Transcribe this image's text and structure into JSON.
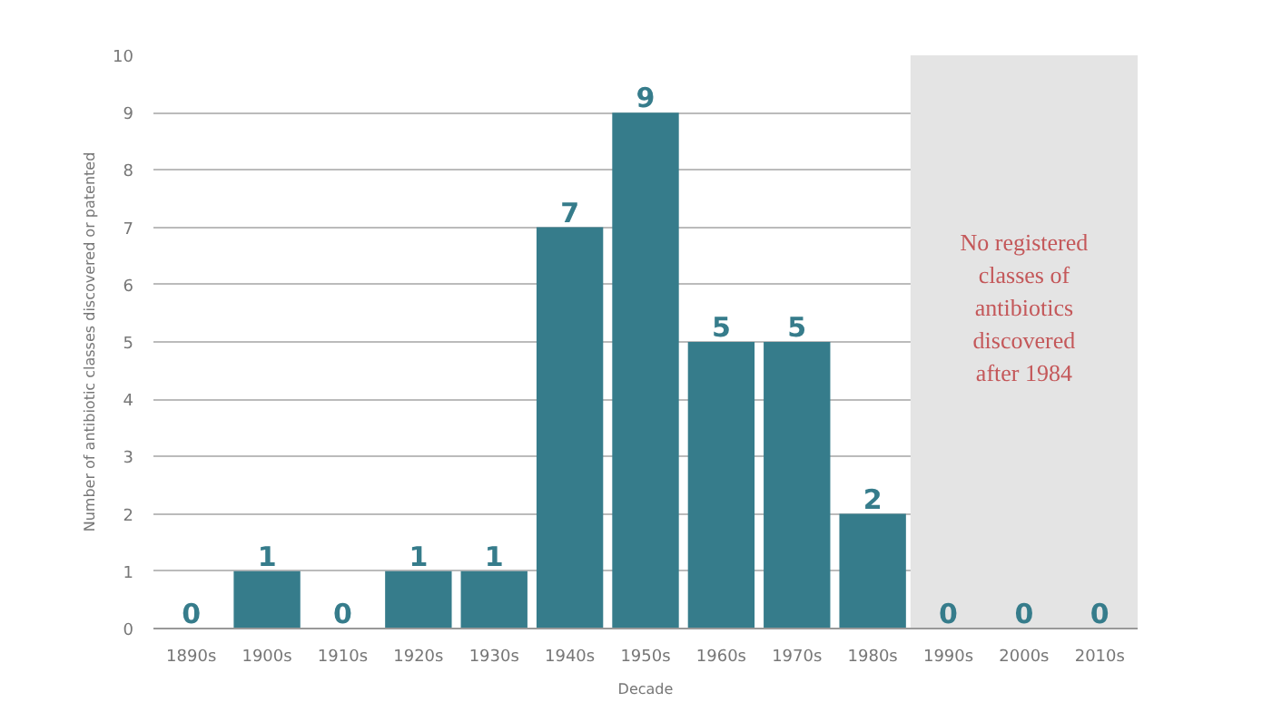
{
  "chart_data": {
    "type": "bar",
    "xlabel": "Decade",
    "ylabel": "Number of antibiotic classes discovered or patented",
    "categories": [
      "1890s",
      "1900s",
      "1910s",
      "1920s",
      "1930s",
      "1940s",
      "1950s",
      "1960s",
      "1970s",
      "1980s",
      "1990s",
      "2000s",
      "2010s"
    ],
    "values": [
      0,
      1,
      0,
      1,
      1,
      7,
      9,
      5,
      5,
      2,
      0,
      0,
      0
    ],
    "color": "#367c8b",
    "ylim": [
      0,
      10
    ],
    "yticks": [
      0,
      1,
      2,
      3,
      4,
      5,
      6,
      7,
      8,
      9,
      10
    ],
    "grid": "y",
    "data_labels": true,
    "bands": [
      {
        "axis": "x",
        "from": "1990s",
        "to": "2010s",
        "label": "No registered classes of antibiotics discovered after 1984",
        "color": "#e4e4e4"
      }
    ]
  }
}
